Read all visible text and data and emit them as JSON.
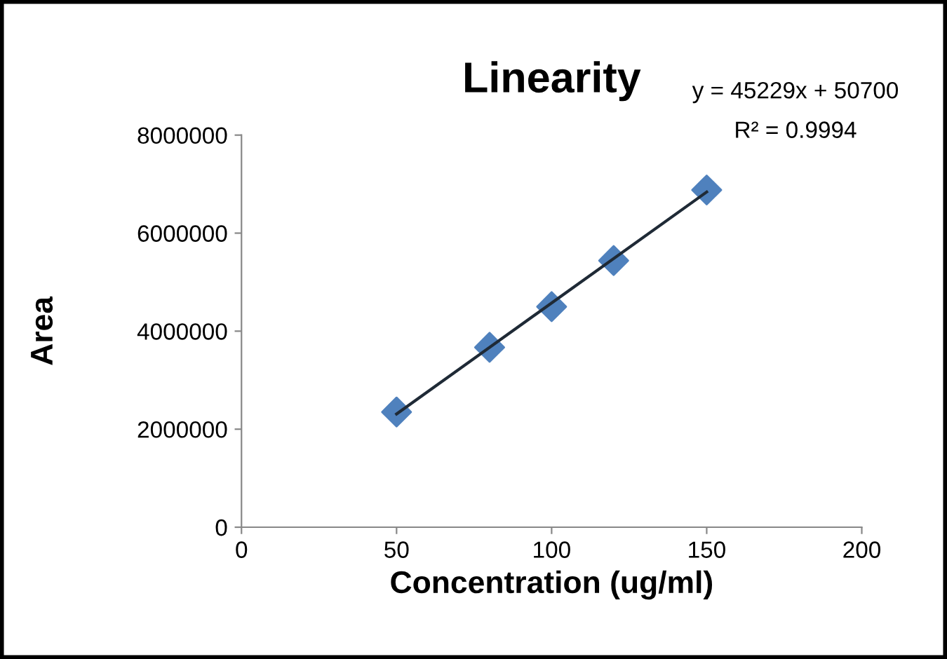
{
  "chart_data": {
    "type": "scatter",
    "title": "Linearity",
    "xlabel": "Concentration (ug/ml)",
    "ylabel": "Area",
    "x": [
      50,
      80,
      100,
      120,
      150
    ],
    "series": [
      {
        "color": "#4f81bd",
        "marker": "diamond",
        "values": [
          2350000,
          3670000,
          4500000,
          5440000,
          6880000
        ]
      },
      {
        "type": "line",
        "color": "#1f2a36",
        "marker": "none",
        "x": [
          50,
          150
        ],
        "values": [
          2310000,
          6840000
        ]
      }
    ],
    "annotations": [
      "y = 45229x + 50700",
      "R² = 0.9994"
    ],
    "xlim": [
      0,
      200
    ],
    "xticks": [
      0,
      50,
      100,
      150,
      200
    ],
    "ylim": [
      0,
      8000000
    ],
    "yticks": [
      0,
      2000000,
      4000000,
      6000000,
      8000000
    ],
    "grid": false,
    "legend": false
  }
}
